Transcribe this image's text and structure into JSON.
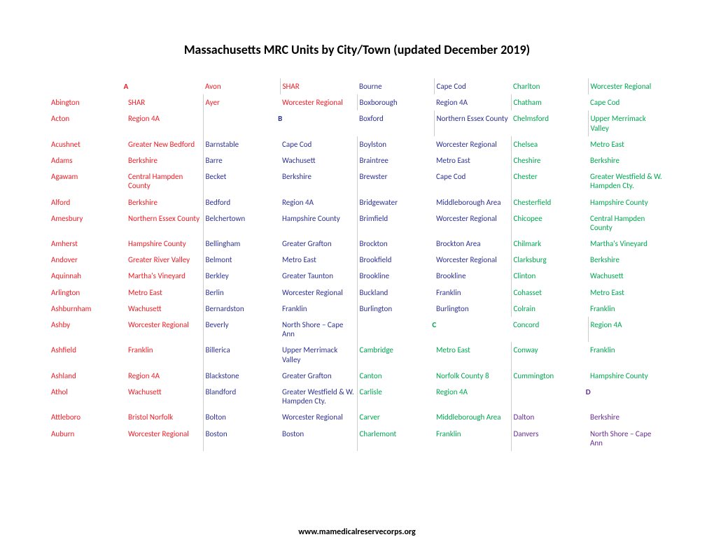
{
  "title": "Massachusetts MRC Units by City/Town (updated December 2019)",
  "footer": "www.mamedicalreservecorps.org",
  "colors": {
    "red": "#ed1c24",
    "blue": "#2e3192",
    "green": "#00a651",
    "purple": "#662d91",
    "black": "#000000"
  },
  "rows": [
    [
      {
        "t": "A",
        "c": "red",
        "letter": true,
        "span": 2
      },
      null,
      {
        "t": "Avon",
        "c": "red"
      },
      {
        "t": "SHAR",
        "c": "red"
      },
      {
        "t": "Bourne",
        "c": "blue"
      },
      {
        "t": "Cape Cod",
        "c": "blue"
      },
      {
        "t": "Charlton",
        "c": "green"
      },
      {
        "t": "Worcester Regional",
        "c": "green"
      }
    ],
    [
      {
        "t": "Abington",
        "c": "red"
      },
      {
        "t": "SHAR",
        "c": "red"
      },
      {
        "t": "Ayer",
        "c": "red"
      },
      {
        "t": "Worcester Regional",
        "c": "red"
      },
      {
        "t": "Boxborough",
        "c": "blue"
      },
      {
        "t": "Region 4A",
        "c": "blue"
      },
      {
        "t": "Chatham",
        "c": "green"
      },
      {
        "t": "Cape Cod",
        "c": "green"
      }
    ],
    [
      {
        "t": "Acton",
        "c": "red"
      },
      {
        "t": "Region 4A",
        "c": "red"
      },
      {
        "t": "B",
        "c": "blue",
        "letter": true,
        "span": 2
      },
      null,
      {
        "t": "Boxford",
        "c": "blue"
      },
      {
        "t": "Northern Essex County",
        "c": "blue"
      },
      {
        "t": "Chelmsford",
        "c": "green"
      },
      {
        "t": "Upper Merrimack Valley",
        "c": "green"
      }
    ],
    [
      {
        "t": "Acushnet",
        "c": "red"
      },
      {
        "t": "Greater New Bedford",
        "c": "red"
      },
      {
        "t": "Barnstable",
        "c": "blue"
      },
      {
        "t": "Cape Cod",
        "c": "blue"
      },
      {
        "t": "Boylston",
        "c": "blue"
      },
      {
        "t": "Worcester Regional",
        "c": "blue"
      },
      {
        "t": "Chelsea",
        "c": "green"
      },
      {
        "t": "Metro East",
        "c": "green"
      }
    ],
    [
      {
        "t": "Adams",
        "c": "red"
      },
      {
        "t": "Berkshire",
        "c": "red"
      },
      {
        "t": "Barre",
        "c": "blue"
      },
      {
        "t": "Wachusett",
        "c": "blue"
      },
      {
        "t": "Braintree",
        "c": "blue"
      },
      {
        "t": "Metro East",
        "c": "blue"
      },
      {
        "t": "Cheshire",
        "c": "green"
      },
      {
        "t": "Berkshire",
        "c": "green"
      }
    ],
    [
      {
        "t": "Agawam",
        "c": "red"
      },
      {
        "t": "Central Hampden County",
        "c": "red"
      },
      {
        "t": "Becket",
        "c": "blue"
      },
      {
        "t": "Berkshire",
        "c": "blue"
      },
      {
        "t": "Brewster",
        "c": "blue"
      },
      {
        "t": "Cape Cod",
        "c": "blue"
      },
      {
        "t": "Chester",
        "c": "green"
      },
      {
        "t": "Greater Westfield & W. Hampden Cty.",
        "c": "green"
      }
    ],
    [
      {
        "t": "Alford",
        "c": "red"
      },
      {
        "t": "Berkshire",
        "c": "red"
      },
      {
        "t": "Bedford",
        "c": "blue"
      },
      {
        "t": "Region 4A",
        "c": "blue"
      },
      {
        "t": "Bridgewater",
        "c": "blue"
      },
      {
        "t": "Middleborough Area",
        "c": "blue"
      },
      {
        "t": "Chesterfield",
        "c": "green"
      },
      {
        "t": "Hampshire County",
        "c": "green"
      }
    ],
    [
      {
        "t": "Amesbury",
        "c": "red"
      },
      {
        "t": "Northern Essex County",
        "c": "red"
      },
      {
        "t": "Belchertown",
        "c": "blue"
      },
      {
        "t": "Hampshire County",
        "c": "blue"
      },
      {
        "t": "Brimfield",
        "c": "blue"
      },
      {
        "t": "Worcester Regional",
        "c": "blue"
      },
      {
        "t": "Chicopee",
        "c": "green"
      },
      {
        "t": "Central Hampden County",
        "c": "green"
      }
    ],
    [
      {
        "t": "Amherst",
        "c": "red"
      },
      {
        "t": "Hampshire County",
        "c": "red"
      },
      {
        "t": "Bellingham",
        "c": "blue"
      },
      {
        "t": "Greater Grafton",
        "c": "blue"
      },
      {
        "t": "Brockton",
        "c": "blue"
      },
      {
        "t": "Brockton Area",
        "c": "blue"
      },
      {
        "t": "Chilmark",
        "c": "green"
      },
      {
        "t": "Martha's Vineyard",
        "c": "green"
      }
    ],
    [
      {
        "t": "Andover",
        "c": "red"
      },
      {
        "t": "Greater River Valley",
        "c": "red"
      },
      {
        "t": "Belmont",
        "c": "blue"
      },
      {
        "t": "Metro East",
        "c": "blue"
      },
      {
        "t": "Brookfield",
        "c": "blue"
      },
      {
        "t": "Worcester Regional",
        "c": "blue"
      },
      {
        "t": "Clarksburg",
        "c": "green"
      },
      {
        "t": "Berkshire",
        "c": "green"
      }
    ],
    [
      {
        "t": "Aquinnah",
        "c": "red"
      },
      {
        "t": "Martha's Vineyard",
        "c": "red"
      },
      {
        "t": "Berkley",
        "c": "blue"
      },
      {
        "t": "Greater Taunton",
        "c": "blue"
      },
      {
        "t": "Brookline",
        "c": "blue"
      },
      {
        "t": "Brookline",
        "c": "blue"
      },
      {
        "t": "Clinton",
        "c": "green"
      },
      {
        "t": "Wachusett",
        "c": "green"
      }
    ],
    [
      {
        "t": "Arlington",
        "c": "red"
      },
      {
        "t": "Metro East",
        "c": "red"
      },
      {
        "t": "Berlin",
        "c": "blue"
      },
      {
        "t": "Worcester Regional",
        "c": "blue"
      },
      {
        "t": "Buckland",
        "c": "blue"
      },
      {
        "t": "Franklin",
        "c": "blue"
      },
      {
        "t": "Cohasset",
        "c": "green"
      },
      {
        "t": "Metro East",
        "c": "green"
      }
    ],
    [
      {
        "t": "Ashburnham",
        "c": "red"
      },
      {
        "t": "Wachusett",
        "c": "red"
      },
      {
        "t": "Bernardston",
        "c": "blue"
      },
      {
        "t": "Franklin",
        "c": "blue"
      },
      {
        "t": "Burlington",
        "c": "blue"
      },
      {
        "t": "Burlington",
        "c": "blue"
      },
      {
        "t": "Colrain",
        "c": "green"
      },
      {
        "t": "Franklin",
        "c": "green"
      }
    ],
    [
      {
        "t": "Ashby",
        "c": "red"
      },
      {
        "t": "Worcester Regional",
        "c": "red"
      },
      {
        "t": "Beverly",
        "c": "blue"
      },
      {
        "t": "North Shore – Cape Ann",
        "c": "blue"
      },
      {
        "t": "C",
        "c": "green",
        "letter": true,
        "span": 2
      },
      null,
      {
        "t": "Concord",
        "c": "green"
      },
      {
        "t": "Region 4A",
        "c": "green"
      }
    ],
    [
      {
        "t": "Ashfield",
        "c": "red"
      },
      {
        "t": "Franklin",
        "c": "red"
      },
      {
        "t": "Billerica",
        "c": "blue"
      },
      {
        "t": "Upper Merrimack Valley",
        "c": "blue"
      },
      {
        "t": "Cambridge",
        "c": "green"
      },
      {
        "t": "Metro East",
        "c": "green"
      },
      {
        "t": "Conway",
        "c": "green"
      },
      {
        "t": "Franklin",
        "c": "green"
      }
    ],
    [
      {
        "t": "Ashland",
        "c": "red"
      },
      {
        "t": "Region 4A",
        "c": "red"
      },
      {
        "t": "Blackstone",
        "c": "blue"
      },
      {
        "t": "Greater Grafton",
        "c": "blue"
      },
      {
        "t": "Canton",
        "c": "green"
      },
      {
        "t": "Norfolk County 8",
        "c": "green"
      },
      {
        "t": "Cummington",
        "c": "green"
      },
      {
        "t": "Hampshire County",
        "c": "green"
      }
    ],
    [
      {
        "t": "Athol",
        "c": "red"
      },
      {
        "t": "Wachusett",
        "c": "red"
      },
      {
        "t": "Blandford",
        "c": "blue"
      },
      {
        "t": "Greater Westfield & W. Hampden Cty.",
        "c": "blue"
      },
      {
        "t": "Carlisle",
        "c": "green"
      },
      {
        "t": "Region 4A",
        "c": "green"
      },
      {
        "t": "D",
        "c": "purple",
        "letter": true,
        "span": 2
      },
      null
    ],
    [
      {
        "t": "Attleboro",
        "c": "red"
      },
      {
        "t": "Bristol Norfolk",
        "c": "red"
      },
      {
        "t": "Bolton",
        "c": "blue"
      },
      {
        "t": "Worcester Regional",
        "c": "blue"
      },
      {
        "t": "Carver",
        "c": "green"
      },
      {
        "t": "Middleborough Area",
        "c": "green"
      },
      {
        "t": "Dalton",
        "c": "purple"
      },
      {
        "t": "Berkshire",
        "c": "purple"
      }
    ],
    [
      {
        "t": "Auburn",
        "c": "red"
      },
      {
        "t": "Worcester Regional",
        "c": "red"
      },
      {
        "t": "Boston",
        "c": "blue"
      },
      {
        "t": "Boston",
        "c": "blue"
      },
      {
        "t": "Charlemont",
        "c": "green"
      },
      {
        "t": "Franklin",
        "c": "green"
      },
      {
        "t": "Danvers",
        "c": "purple"
      },
      {
        "t": "North Shore – Cape Ann",
        "c": "purple"
      }
    ]
  ]
}
